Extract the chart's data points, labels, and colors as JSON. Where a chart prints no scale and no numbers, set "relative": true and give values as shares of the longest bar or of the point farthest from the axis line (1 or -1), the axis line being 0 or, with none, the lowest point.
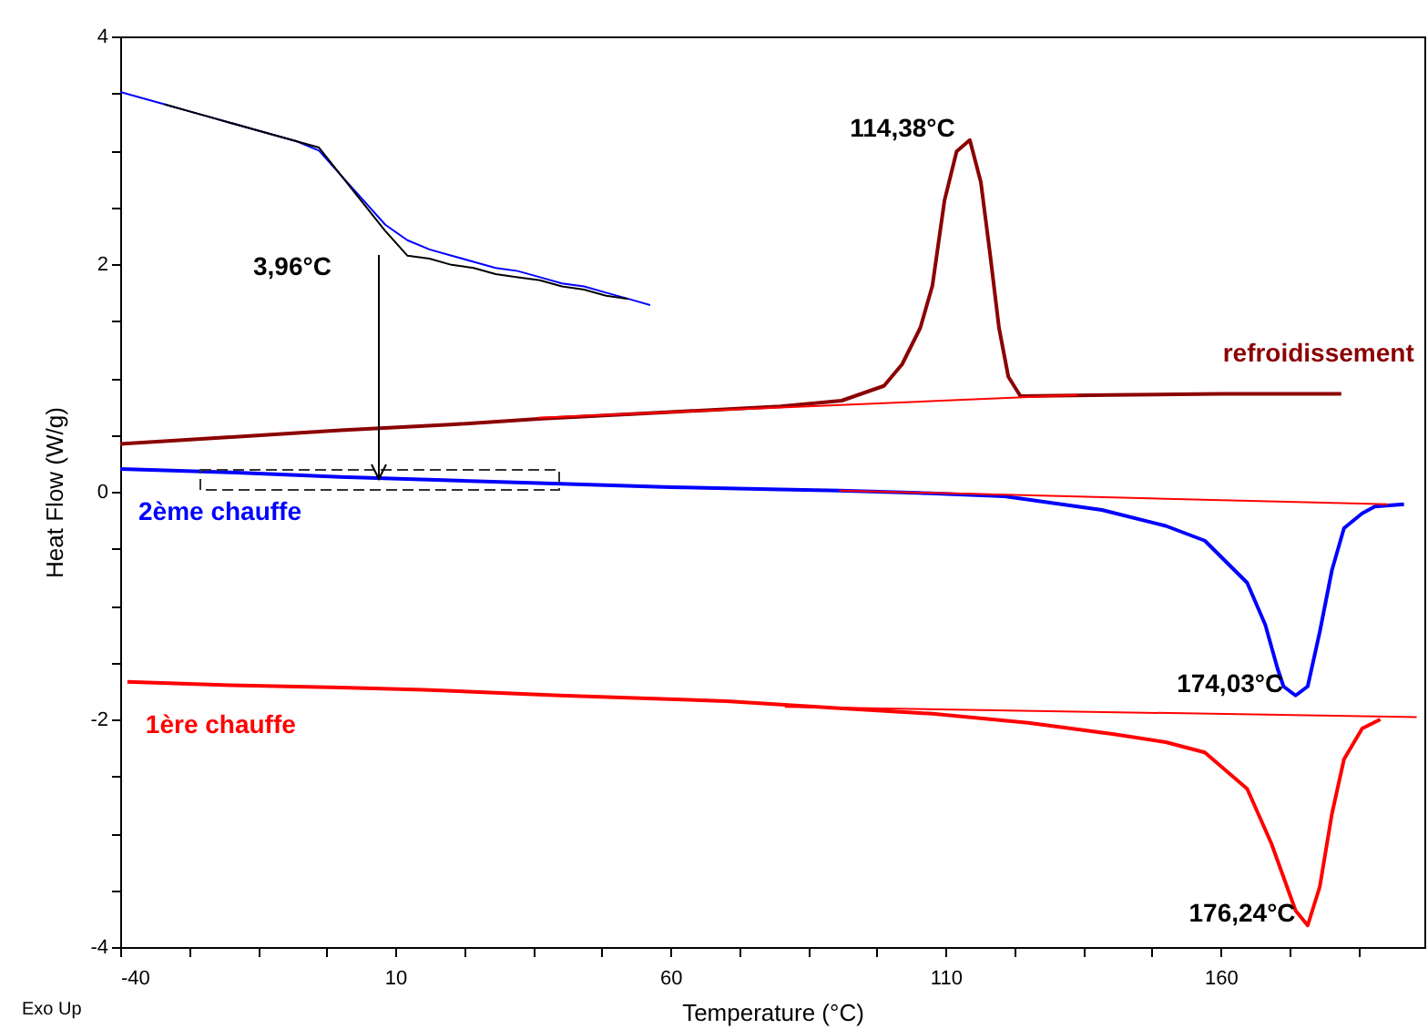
{
  "chart_data": [
    {
      "type": "line",
      "xlabel": "Temperature (°C)",
      "ylabel": "Heat Flow (W/g)",
      "xlim": [
        -40,
        197
      ],
      "ylim": [
        -4,
        4
      ],
      "xticks": [
        -40,
        {
          "value": -27.5,
          "label": null
        },
        {
          "value": -15,
          "label": null
        },
        {
          "value": -2.5,
          "label": null
        },
        10,
        {
          "value": 22.5,
          "label": null
        },
        {
          "value": 35,
          "label": null
        },
        {
          "value": 47.5,
          "label": null
        },
        60,
        {
          "value": 72.5,
          "label": null
        },
        {
          "value": 85,
          "label": null
        },
        {
          "value": 97.5,
          "label": null
        },
        110,
        {
          "value": 122.5,
          "label": null
        },
        {
          "value": 135,
          "label": null
        },
        {
          "value": 147.5,
          "label": null
        },
        160,
        {
          "value": 172.5,
          "label": null
        },
        {
          "value": 185,
          "label": null
        }
      ],
      "yticks": [
        -4,
        {
          "value": -3.5,
          "label": null
        },
        {
          "value": -3,
          "label": null
        },
        {
          "value": -2.5,
          "label": null
        },
        -2,
        {
          "value": -1.5,
          "label": null
        },
        {
          "value": -1,
          "label": null
        },
        {
          "value": -0.5,
          "label": null
        },
        0,
        {
          "value": 0.5,
          "label": null
        },
        {
          "value": 1,
          "label": null
        },
        {
          "value": 1.5,
          "label": null
        },
        2,
        {
          "value": 2.5,
          "label": null
        },
        {
          "value": 3,
          "label": null
        },
        {
          "value": 3.5,
          "label": null
        },
        4
      ],
      "series": [
        {
          "name": "refroidissement",
          "color": "#8b0000",
          "x": [
            -40,
            -20,
            0,
            20,
            36,
            60,
            80,
            91.1,
            98.8,
            102.1,
            105.4,
            107.6,
            109.8,
            112.0,
            114.4,
            116.4,
            118.1,
            119.7,
            121.4,
            123.6,
            140,
            160,
            181.9
          ],
          "values": [
            0.42,
            0.48,
            0.54,
            0.59,
            0.64,
            0.7,
            0.75,
            0.8,
            0.93,
            1.12,
            1.44,
            1.81,
            2.56,
            2.99,
            3.09,
            2.72,
            2.08,
            1.44,
            1.01,
            0.84,
            0.85,
            0.86,
            0.86
          ]
        },
        {
          "name": "2ème chauffe",
          "color": "#0000ff",
          "x": [
            -40,
            -20,
            0,
            20,
            40,
            60,
            80,
            90.7,
            105,
            120.7,
            138.4,
            150,
            157.1,
            164.8,
            168.1,
            170.3,
            171.4,
            173.6,
            175.8,
            178,
            180.2,
            182.4,
            185.7,
            188,
            193.3
          ],
          "values": [
            0.2,
            0.17,
            0.13,
            0.1,
            0.07,
            0.04,
            0.02,
            0.01,
            -0.01,
            -0.04,
            -0.16,
            -0.3,
            -0.43,
            -0.8,
            -1.17,
            -1.55,
            -1.71,
            -1.79,
            -1.71,
            -1.23,
            -0.69,
            -0.32,
            -0.19,
            -0.13,
            -0.11
          ]
        },
        {
          "name": "1ère chauffe",
          "color": "#ff0000",
          "x": [
            -38.7,
            -20,
            0,
            15.1,
            40,
            70.2,
            90,
            107.6,
            125,
            140.6,
            150,
            157.1,
            164.8,
            169.2,
            173.6,
            175.8,
            178,
            180.2,
            182.4,
            185.7,
            189
          ],
          "values": [
            -1.67,
            -1.7,
            -1.72,
            -1.74,
            -1.79,
            -1.84,
            -1.9,
            -1.95,
            -2.03,
            -2.13,
            -2.2,
            -2.29,
            -2.61,
            -3.09,
            -3.68,
            -3.81,
            -3.47,
            -2.83,
            -2.35,
            -2.08,
            -2.0
          ]
        },
        {
          "color": "#ff0000",
          "x": [
            35.9,
            133.9
          ],
          "values": [
            0.65,
            0.85
          ]
        },
        {
          "color": "#ff0000",
          "x": [
            90.7,
            190.4
          ],
          "values": [
            0.01,
            -0.11
          ]
        },
        {
          "color": "#ff0000",
          "x": [
            80.8,
            195.6
          ],
          "values": [
            -1.89,
            -1.98
          ]
        }
      ],
      "annotations": [
        {
          "text": "114,38°C",
          "x": 114.38,
          "y": 3.09
        },
        {
          "text": "174,03°C",
          "x": 174.03,
          "y": -1.79
        },
        {
          "text": "176,24°C",
          "x": 176.24,
          "y": -3.81
        },
        "Exo Up"
      ]
    },
    {
      "type": "line",
      "relative": true,
      "tick_labels": false,
      "categories": [
        null,
        null,
        null,
        null,
        null,
        null,
        null,
        null,
        null,
        null,
        null,
        null,
        null,
        null,
        null,
        null,
        null,
        null,
        null,
        null,
        null,
        null,
        null,
        null,
        null
      ],
      "series": [
        {
          "color": "#0000ff",
          "values": [
            1,
            0.98,
            0.96,
            0.94,
            0.92,
            0.9,
            0.88,
            0.86,
            0.84,
            0.81,
            0.73,
            0.65,
            0.57,
            0.52,
            0.49,
            0.47,
            0.45,
            0.43,
            0.42,
            0.4,
            0.38,
            0.37,
            0.35,
            0.33,
            0.31
          ]
        },
        {
          "color": "#000000",
          "values": [
            null,
            null,
            0.96,
            0.94,
            0.92,
            0.9,
            0.88,
            0.86,
            0.84,
            0.82,
            0.73,
            0.64,
            0.55,
            0.47,
            0.46,
            0.44,
            0.43,
            0.41,
            0.4,
            0.39,
            0.37,
            0.36,
            0.34,
            0.33,
            null
          ]
        }
      ],
      "annotations": [
        "3,96°C"
      ]
    }
  ]
}
